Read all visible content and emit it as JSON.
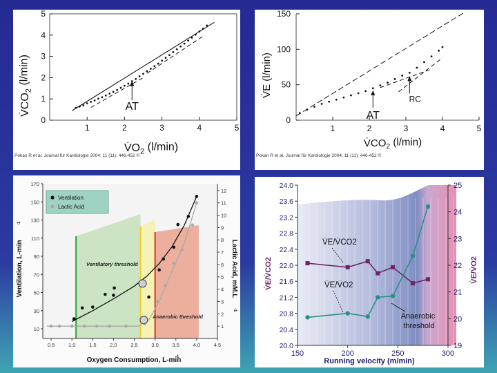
{
  "chart_data": [
    {
      "type": "scatter",
      "panel": "top-left",
      "ylabel_prefix": "V̇",
      "ylabel": "CO2 (l/min)",
      "xlabel_prefix": "V̇",
      "xlabel": "O2 (l/min)",
      "xlim": [
        0,
        5
      ],
      "ylim": [
        0,
        5
      ],
      "xticks": [
        "1",
        "2",
        "3",
        "4",
        "5"
      ],
      "yticks": [
        "0",
        "1",
        "2",
        "3",
        "4",
        "5"
      ],
      "points": [
        [
          0.7,
          0.58
        ],
        [
          0.8,
          0.64
        ],
        [
          0.9,
          0.7
        ],
        [
          1.0,
          0.79
        ],
        [
          1.1,
          0.86
        ],
        [
          1.2,
          0.93
        ],
        [
          1.3,
          1.01
        ],
        [
          1.4,
          1.08
        ],
        [
          1.5,
          1.16
        ],
        [
          1.6,
          1.25
        ],
        [
          1.7,
          1.33
        ],
        [
          1.8,
          1.42
        ],
        [
          1.9,
          1.52
        ],
        [
          2.0,
          1.62
        ],
        [
          2.1,
          1.72
        ],
        [
          2.2,
          1.83
        ],
        [
          2.3,
          1.94
        ],
        [
          2.4,
          2.06
        ],
        [
          2.5,
          2.18
        ],
        [
          2.6,
          2.3
        ],
        [
          2.7,
          2.42
        ],
        [
          2.8,
          2.54
        ],
        [
          2.9,
          2.66
        ],
        [
          3.0,
          2.8
        ],
        [
          3.1,
          2.93
        ],
        [
          3.2,
          3.06
        ],
        [
          3.3,
          3.2
        ],
        [
          3.4,
          3.33
        ],
        [
          3.5,
          3.47
        ],
        [
          3.6,
          3.6
        ],
        [
          3.7,
          3.74
        ],
        [
          3.8,
          3.88
        ],
        [
          3.9,
          4.02
        ],
        [
          4.0,
          4.17
        ],
        [
          4.1,
          4.3
        ],
        [
          4.2,
          4.45
        ]
      ],
      "fit_line": [
        [
          0.6,
          0.45
        ],
        [
          4.4,
          4.6
        ]
      ],
      "dashed_lines": [
        [
          [
            1.1,
            0.6
          ],
          [
            2.5,
            2.0
          ]
        ],
        [
          [
            2.6,
            2.2
          ],
          [
            4.1,
            3.95
          ]
        ]
      ],
      "annotation": {
        "label": "AT",
        "x": 2.2
      },
      "citation": "Pokan R et al. Journal für Kardiologie 2004; 11 (11): 446-452 ©"
    },
    {
      "type": "scatter",
      "panel": "top-right",
      "ylabel_prefix": "V̇",
      "ylabel": "E (l/min)",
      "xlabel_prefix": "V̇",
      "xlabel": "CO2 (l/min)",
      "xlim": [
        0,
        5
      ],
      "ylim": [
        0,
        150
      ],
      "xticks": [
        "1",
        "2",
        "3",
        "4",
        "5"
      ],
      "yticks": [
        "0",
        "50",
        "100",
        "150"
      ],
      "points": [
        [
          0.1,
          10
        ],
        [
          0.3,
          15
        ],
        [
          0.5,
          19
        ],
        [
          0.7,
          23
        ],
        [
          0.9,
          26
        ],
        [
          1.1,
          29
        ],
        [
          1.3,
          32
        ],
        [
          1.5,
          35
        ],
        [
          1.7,
          38
        ],
        [
          1.9,
          41
        ],
        [
          2.1,
          45
        ],
        [
          2.3,
          49
        ],
        [
          2.5,
          53
        ],
        [
          2.7,
          58
        ],
        [
          2.9,
          63
        ],
        [
          3.1,
          67
        ],
        [
          3.3,
          74
        ],
        [
          3.5,
          82
        ],
        [
          3.7,
          90
        ],
        [
          3.9,
          98
        ],
        [
          4.0,
          103
        ]
      ],
      "fit_line": [
        [
          0.0,
          6
        ],
        [
          4.6,
          152
        ]
      ],
      "dashed_lines": [
        [
          [
            2.3,
            46
          ],
          [
            3.7,
            72
          ]
        ],
        [
          [
            2.8,
            40
          ],
          [
            4.0,
            88
          ]
        ]
      ],
      "annotations": [
        {
          "label": "AT",
          "x": 2.1
        },
        {
          "label": "RC",
          "x": 3.1
        }
      ],
      "citation": "Pokan R et al. Journal für Kardiologie 2004; 11 (11): 446-452 ©"
    },
    {
      "type": "line",
      "panel": "bottom-left",
      "xlabel": "Oxygen Consumption, L-min",
      "ylabel": "Ventilation, L-min",
      "y2label": "Lactic Acid, mM.L",
      "xlim": [
        0.3,
        4.5
      ],
      "ylim": [
        10,
        170
      ],
      "y2lim": [
        0,
        13
      ],
      "xticks": [
        "0.5",
        "1.0",
        "1.5",
        "2.0",
        "2.5",
        "3.0",
        "3.5",
        "4.0",
        "4.5"
      ],
      "yticks": [
        "10",
        "30",
        "50",
        "70",
        "90",
        "110",
        "130",
        "150",
        "170"
      ],
      "y2ticks": [
        "1",
        "2",
        "3",
        "4",
        "5",
        "6",
        "7",
        "8",
        "9",
        "10",
        "11",
        "12"
      ],
      "zones": [
        {
          "from": 1.1,
          "to": 2.65,
          "color": "#c9e3c0",
          "border": "#2f9a3a"
        },
        {
          "from": 2.65,
          "to": 3.0,
          "color": "#f6f0b0",
          "border": "#e8cf30"
        },
        {
          "from": 3.0,
          "to": 4.05,
          "color": "#ecab98",
          "border": "#d33a2a"
        }
      ],
      "series": [
        {
          "name": "Ventilation",
          "axis": "left",
          "color": "#111111",
          "points": [
            [
              1.05,
              21
            ],
            [
              1.25,
              33
            ],
            [
              1.5,
              34
            ],
            [
              1.8,
              48
            ],
            [
              2.0,
              47
            ],
            [
              2.02,
              55
            ],
            [
              2.7,
              60
            ],
            [
              2.85,
              45
            ],
            [
              3.1,
              75
            ],
            [
              3.2,
              87
            ],
            [
              3.45,
              100
            ],
            [
              3.55,
              125
            ],
            [
              3.8,
              134
            ],
            [
              4.0,
              156
            ]
          ],
          "curve": [
            [
              1.0,
              18
            ],
            [
              1.5,
              30
            ],
            [
              2.0,
              43
            ],
            [
              2.5,
              57
            ],
            [
              2.8,
              68
            ],
            [
              3.1,
              82
            ],
            [
              3.4,
              100
            ],
            [
              3.7,
              124
            ],
            [
              4.0,
              156
            ]
          ]
        },
        {
          "name": "Lactic Acid",
          "axis": "right",
          "color": "#a9a9a9",
          "points": [
            [
              0.5,
              1.0
            ],
            [
              0.7,
              1.0
            ],
            [
              1.0,
              1.0
            ],
            [
              1.3,
              1.0
            ],
            [
              1.6,
              1.0
            ],
            [
              1.9,
              1.0
            ],
            [
              2.3,
              1.0
            ],
            [
              2.75,
              1.2
            ],
            [
              3.05,
              3.0
            ],
            [
              3.25,
              4.3
            ],
            [
              3.45,
              6.1
            ],
            [
              3.65,
              7.2
            ],
            [
              3.9,
              9.2
            ],
            [
              4.0,
              11.0
            ]
          ],
          "curve": [
            [
              0.4,
              1.0
            ],
            [
              2.6,
              1.0
            ],
            [
              2.85,
              1.5
            ],
            [
              3.1,
              3.0
            ],
            [
              3.4,
              5.4
            ],
            [
              3.7,
              7.7
            ],
            [
              4.0,
              11.0
            ]
          ]
        }
      ],
      "legend": [
        "Ventilation",
        "Lactic Acid"
      ],
      "threshold_labels": [
        "Ventilatory threshold",
        "Anaerobic threshold"
      ],
      "threshold_markers": [
        {
          "x": 2.7,
          "y": 60,
          "axis": "left"
        },
        {
          "x": 2.73,
          "y": 1.5,
          "axis": "right"
        }
      ],
      "exponent": "-1"
    },
    {
      "type": "line",
      "panel": "bottom-right",
      "xlabel": "Running velocity (m/min)",
      "ylabel": "V̇E/V̇CO2",
      "y2label": "V̇E/V̇O2",
      "xlim": [
        150,
        300
      ],
      "ylim": [
        20.0,
        24.0
      ],
      "y2lim": [
        19,
        25
      ],
      "xticks": [
        "150",
        "200",
        "250",
        "300"
      ],
      "yticks": [
        "20.0",
        "20.4",
        "20.8",
        "21.2",
        "21.6",
        "22.0",
        "22.4",
        "22.8",
        "23.2",
        "23.6",
        "24.0"
      ],
      "y2ticks": [
        "19",
        "20",
        "21",
        "22",
        "23",
        "24",
        "25"
      ],
      "series": [
        {
          "name": "V̇E/V̇CO2",
          "axis": "left",
          "color": "#6a2666",
          "x": [
            160,
            200,
            220,
            230,
            245,
            265,
            280
          ],
          "values": [
            22.05,
            21.95,
            22.1,
            21.8,
            21.95,
            21.55,
            21.65
          ]
        },
        {
          "name": "V̇E/V̇O2",
          "axis": "right",
          "color": "#2a8f84",
          "x": [
            160,
            200,
            220,
            230,
            245,
            265,
            280
          ],
          "values": [
            20.05,
            20.2,
            20.08,
            20.8,
            20.85,
            22.35,
            24.2
          ]
        }
      ],
      "series_labels": [
        "V̇E/V̇CO2",
        "V̇E/V̇O2"
      ],
      "annotation": "Anaerobic threshold",
      "annotation_lines": [
        "Anaerobic",
        "threshold"
      ]
    }
  ]
}
